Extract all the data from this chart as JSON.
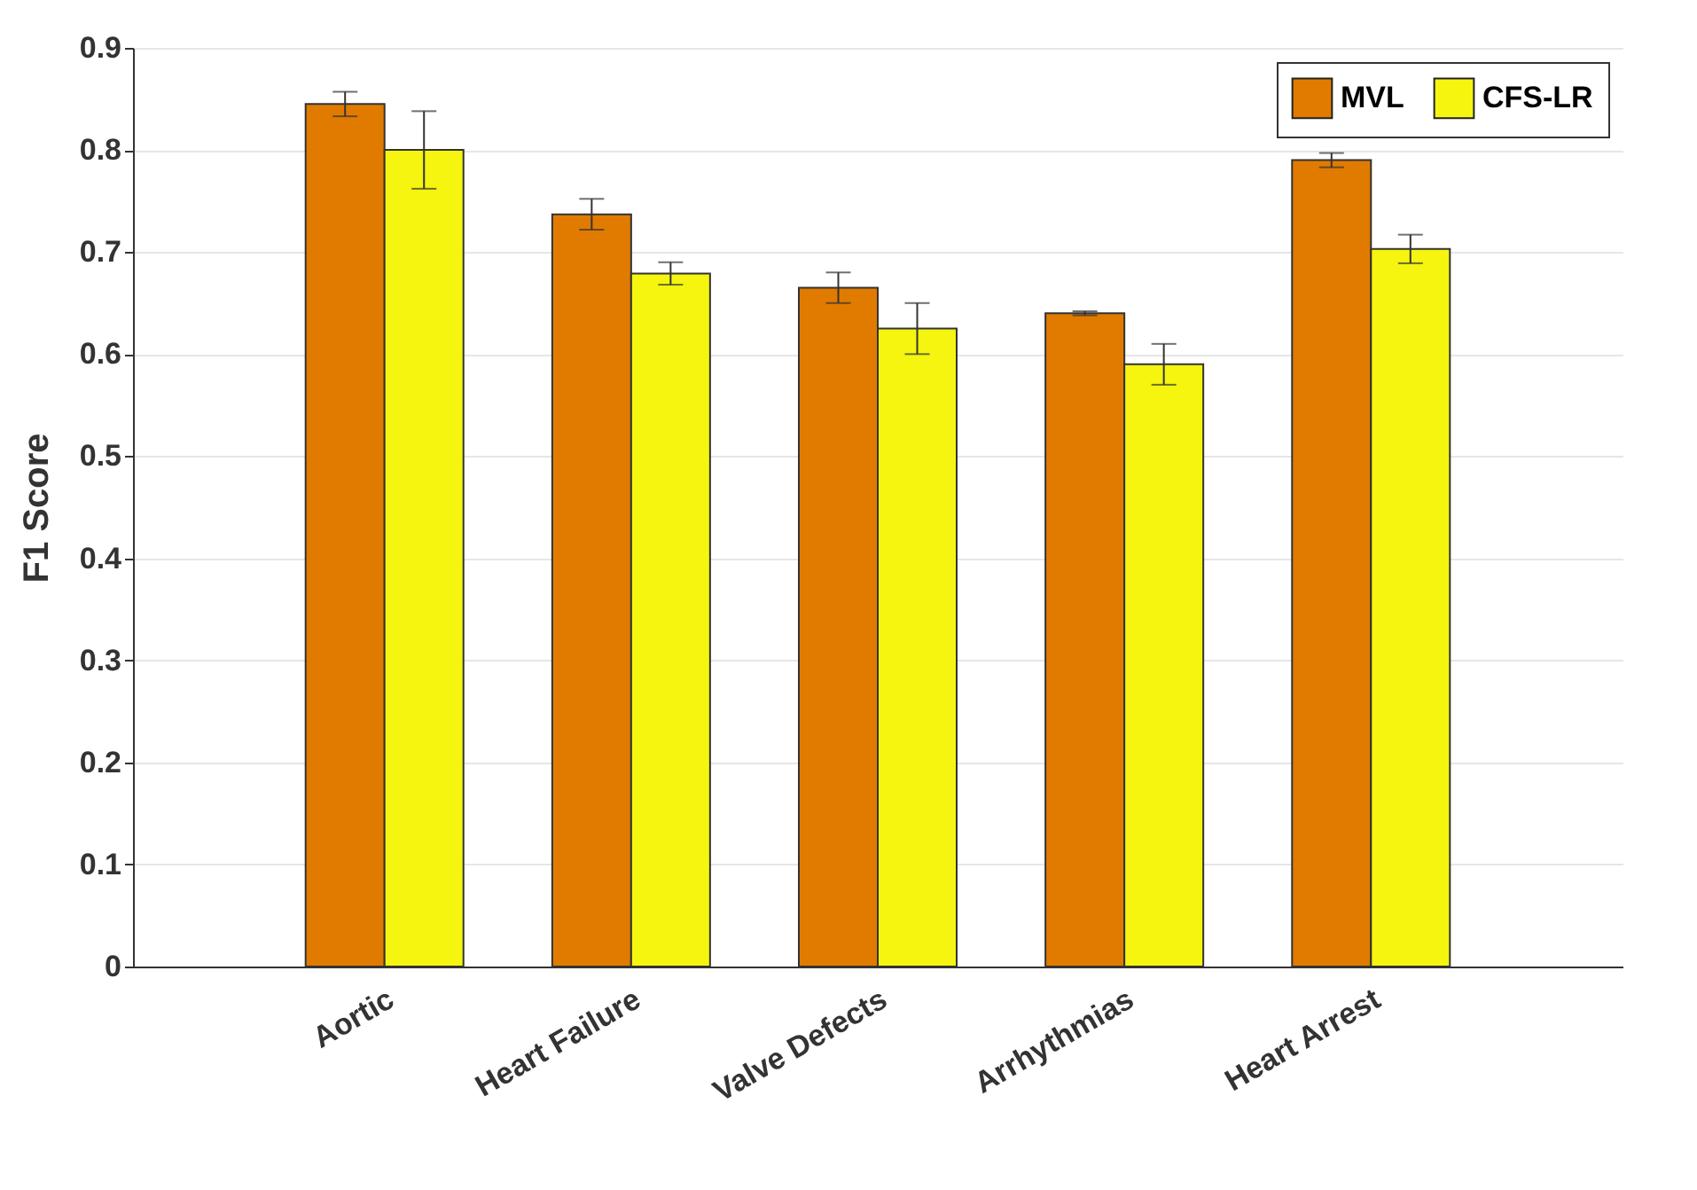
{
  "chart_data": {
    "type": "bar",
    "ylabel": "F1 Score",
    "categories": [
      "Aortic",
      "Heart Failure",
      "Valve Defects",
      "Arrhythmias",
      "Heart Arrest"
    ],
    "series": [
      {
        "name": "MVL",
        "color": "#e07b00",
        "values": [
          0.845,
          0.737,
          0.665,
          0.64,
          0.79
        ],
        "errors": [
          0.012,
          0.015,
          0.015,
          0.002,
          0.007
        ]
      },
      {
        "name": "CFS-LR",
        "color": "#f5f50f",
        "values": [
          0.8,
          0.679,
          0.625,
          0.59,
          0.703
        ],
        "errors": [
          0.038,
          0.011,
          0.025,
          0.02,
          0.014
        ]
      }
    ],
    "ylim": [
      0,
      0.9
    ],
    "yticks": [
      0,
      0.1,
      0.2,
      0.3,
      0.4,
      0.5,
      0.6,
      0.7,
      0.8,
      0.9
    ],
    "grid": "y",
    "legend": "top right"
  }
}
